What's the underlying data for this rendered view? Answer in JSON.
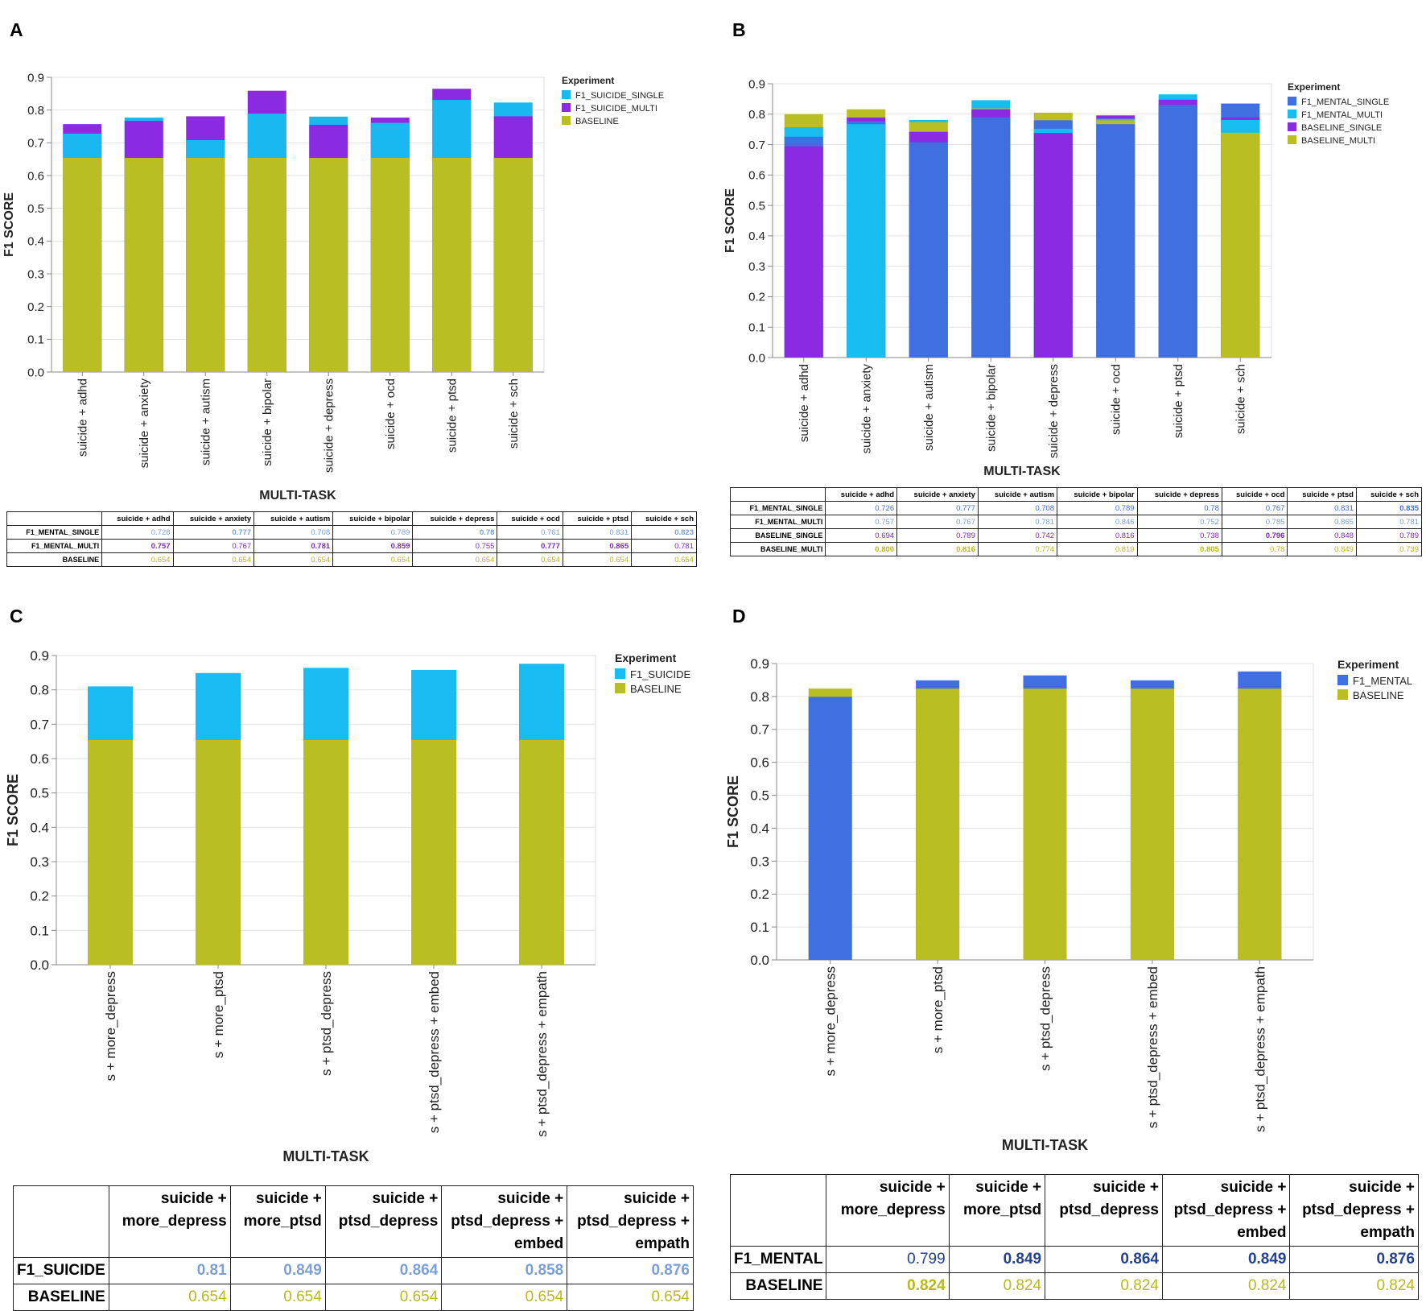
{
  "colors": {
    "f1_suicide_single": "#1ab8f0",
    "f1_suicide_multi": "#8a2be2",
    "baseline": "#b9be22",
    "f1_mental_single": "#3f6fe0",
    "f1_mental_multi": "#18bdf0",
    "baseline_single": "#8a2be2",
    "baseline_multi": "#b9be22",
    "f1_suicide": "#19bcf2",
    "f1_mental": "#3f6fe0",
    "tbl_light_blue": "#7c9fd6",
    "tbl_purple": "#7d2bc4",
    "tbl_olive": "#b9b81e",
    "tbl_dark_blue": "#24408e"
  },
  "chart_data": [
    {
      "panel": "A",
      "type": "bar",
      "stacked": "overlay",
      "ylabel": "F1 SCORE",
      "xlabel": "MULTI-TASK",
      "ylim": [
        0,
        0.9
      ],
      "yticks": [
        "0.0",
        "0.1",
        "0.2",
        "0.3",
        "0.4",
        "0.5",
        "0.6",
        "0.7",
        "0.8",
        "0.9"
      ],
      "legend_title": "Experiment",
      "legend_position": "top-right",
      "categories": [
        "suicide + adhd",
        "suicide + anxiety",
        "suicide + autism",
        "suicide + bipolar",
        "suicide + depress",
        "suicide + ocd",
        "suicide + ptsd",
        "suicide + sch"
      ],
      "series": [
        {
          "name": "F1_SUICIDE_SINGLE",
          "color_key": "f1_suicide_single",
          "values": [
            0.728,
            0.777,
            0.708,
            0.789,
            0.78,
            0.761,
            0.831,
            0.823
          ]
        },
        {
          "name": "F1_SUICIDE_MULTI",
          "color_key": "f1_suicide_multi",
          "values": [
            0.757,
            0.767,
            0.781,
            0.859,
            0.755,
            0.777,
            0.865,
            0.781
          ]
        },
        {
          "name": "BASELINE",
          "color_key": "baseline",
          "values": [
            0.654,
            0.654,
            0.654,
            0.654,
            0.654,
            0.654,
            0.654,
            0.654
          ]
        }
      ]
    },
    {
      "panel": "B",
      "type": "bar",
      "stacked": "overlay",
      "ylabel": "F1 SCORE",
      "xlabel": "MULTI-TASK",
      "ylim": [
        0,
        0.9
      ],
      "yticks": [
        "0.0",
        "0.1",
        "0.2",
        "0.3",
        "0.4",
        "0.5",
        "0.6",
        "0.7",
        "0.8",
        "0.9"
      ],
      "legend_title": "Experiment",
      "legend_position": "top-right",
      "categories": [
        "suicide + adhd",
        "suicide + anxiety",
        "suicide + autism",
        "suicide + bipolar",
        "suicide + depress",
        "suicide + ocd",
        "suicide + ptsd",
        "suicide + sch"
      ],
      "series": [
        {
          "name": "F1_MENTAL_SINGLE",
          "color_key": "f1_mental_single",
          "values": [
            0.726,
            0.777,
            0.708,
            0.789,
            0.78,
            0.767,
            0.831,
            0.835
          ]
        },
        {
          "name": "F1_MENTAL_MULTI",
          "color_key": "f1_mental_multi",
          "values": [
            0.757,
            0.767,
            0.781,
            0.846,
            0.752,
            0.785,
            0.865,
            0.781
          ]
        },
        {
          "name": "BASELINE_SINGLE",
          "color_key": "baseline_single",
          "values": [
            0.694,
            0.789,
            0.742,
            0.816,
            0.738,
            0.796,
            0.848,
            0.789
          ]
        },
        {
          "name": "BASELINE_MULTI",
          "color_key": "baseline_multi",
          "values": [
            0.8,
            0.816,
            0.774,
            0.819,
            0.805,
            0.78,
            0.849,
            0.739
          ]
        }
      ]
    },
    {
      "panel": "C",
      "type": "bar",
      "stacked": "overlay",
      "ylabel": "F1 SCORE",
      "xlabel": "MULTI-TASK",
      "ylim": [
        0,
        0.9
      ],
      "yticks": [
        "0.0",
        "0.1",
        "0.2",
        "0.3",
        "0.4",
        "0.5",
        "0.6",
        "0.7",
        "0.8",
        "0.9"
      ],
      "legend_title": "Experiment",
      "legend_position": "top-right",
      "categories": [
        "s + more_depress",
        "s + more_ptsd",
        "s + ptsd_depress",
        "s + ptsd_depress + embed",
        "s + ptsd_depress + empath"
      ],
      "series": [
        {
          "name": "F1_SUICIDE",
          "color_key": "f1_suicide",
          "values": [
            0.81,
            0.849,
            0.864,
            0.858,
            0.876
          ]
        },
        {
          "name": "BASELINE",
          "color_key": "baseline",
          "values": [
            0.654,
            0.654,
            0.654,
            0.654,
            0.654
          ]
        }
      ]
    },
    {
      "panel": "D",
      "type": "bar",
      "stacked": "overlay",
      "ylabel": "F1 SCORE",
      "xlabel": "MULTI-TASK",
      "ylim": [
        0,
        0.9
      ],
      "yticks": [
        "0.0",
        "0.1",
        "0.2",
        "0.3",
        "0.4",
        "0.5",
        "0.6",
        "0.7",
        "0.8",
        "0.9"
      ],
      "legend_title": "Experiment",
      "legend_position": "top-right",
      "categories": [
        "s + more_depress",
        "s + more_ptsd",
        "s + ptsd_depress",
        "s + ptsd_depress + embed",
        "s + ptsd_depress + empath"
      ],
      "series": [
        {
          "name": "F1_MENTAL",
          "color_key": "f1_mental",
          "values": [
            0.799,
            0.849,
            0.864,
            0.849,
            0.876
          ]
        },
        {
          "name": "BASELINE",
          "color_key": "baseline",
          "values": [
            0.824,
            0.824,
            0.824,
            0.824,
            0.824
          ]
        }
      ]
    }
  ],
  "panels": {
    "A": {
      "letter": "A",
      "table": {
        "headers": [
          "suicide + adhd",
          "suicide + anxiety",
          "suicide + autism",
          "suicide + bipolar",
          "suicide + depress",
          "suicide + ocd",
          "suicide + ptsd",
          "suicide + sch"
        ],
        "rows": [
          {
            "label": "F1_MENTAL_SINGLE",
            "color_key": "tbl_light_blue",
            "values": [
              "0.728",
              "0.777",
              "0.708",
              "0.789",
              "0.78",
              "0.761",
              "0.831",
              "0.823"
            ],
            "bold": [
              false,
              true,
              false,
              false,
              true,
              false,
              false,
              true
            ]
          },
          {
            "label": "F1_MENTAL_MULTI",
            "color_key": "tbl_purple",
            "values": [
              "0.757",
              "0.767",
              "0.781",
              "0.859",
              "0.755",
              "0.777",
              "0.865",
              "0.781"
            ],
            "bold": [
              true,
              false,
              true,
              true,
              false,
              true,
              true,
              false
            ]
          },
          {
            "label": "BASELINE",
            "color_key": "tbl_olive",
            "values": [
              "0.654",
              "0.654",
              "0.654",
              "0.654",
              "0.654",
              "0.654",
              "0.654",
              "0.654"
            ],
            "bold": [
              false,
              false,
              false,
              false,
              false,
              false,
              false,
              false
            ]
          }
        ]
      }
    },
    "B": {
      "letter": "B",
      "table": {
        "headers": [
          "suicide + adhd",
          "suicide + anxiety",
          "suicide + autism",
          "suicide + bipolar",
          "suicide + depress",
          "suicide + ocd",
          "suicide + ptsd",
          "suicide + sch"
        ],
        "rows": [
          {
            "label": "F1_MENTAL_SINGLE",
            "color_key": "f1_mental_single",
            "values": [
              "0.726",
              "0.777",
              "0.708",
              "0.789",
              "0.78",
              "0.767",
              "0.831",
              "0.835"
            ],
            "bold": [
              false,
              false,
              false,
              false,
              false,
              false,
              false,
              true
            ]
          },
          {
            "label": "F1_MENTAL_MULTI",
            "color_key": "tbl_light_blue",
            "values": [
              "0.757",
              "0.767",
              "0.781",
              "0.846",
              "0.752",
              "0.785",
              "0.865",
              "0.781"
            ],
            "bold": [
              false,
              false,
              false,
              false,
              false,
              false,
              false,
              false
            ]
          },
          {
            "label": "BASELINE_SINGLE",
            "color_key": "tbl_purple",
            "values": [
              "0.694",
              "0.789",
              "0.742",
              "0.816",
              "0.738",
              "0.796",
              "0.848",
              "0.789"
            ],
            "bold": [
              false,
              false,
              false,
              false,
              false,
              true,
              false,
              false
            ]
          },
          {
            "label": "BASELINE_MULTI",
            "color_key": "tbl_olive",
            "values": [
              "0.800",
              "0.816",
              "0.774",
              "0.819",
              "0.805",
              "0.78",
              "0.849",
              "0.739"
            ],
            "bold": [
              true,
              true,
              false,
              false,
              true,
              false,
              false,
              false
            ]
          }
        ]
      }
    },
    "C": {
      "letter": "C",
      "table": {
        "headers": [
          "suicide + more_depress",
          "suicide + more_ptsd",
          "suicide + ptsd_depress",
          "suicide + ptsd_depress + embed",
          "suicide + ptsd_depress + empath"
        ],
        "rows": [
          {
            "label": "F1_SUICIDE",
            "color_key": "tbl_light_blue",
            "values": [
              "0.81",
              "0.849",
              "0.864",
              "0.858",
              "0.876"
            ],
            "bold": [
              true,
              true,
              true,
              true,
              true
            ]
          },
          {
            "label": "BASELINE",
            "color_key": "tbl_olive",
            "values": [
              "0.654",
              "0.654",
              "0.654",
              "0.654",
              "0.654"
            ],
            "bold": [
              false,
              false,
              false,
              false,
              false
            ]
          }
        ]
      }
    },
    "D": {
      "letter": "D",
      "table": {
        "headers": [
          "suicide + more_depress",
          "suicide + more_ptsd",
          "suicide + ptsd_depress",
          "suicide + ptsd_depress + embed",
          "suicide + ptsd_depress + empath"
        ],
        "rows": [
          {
            "label": "F1_MENTAL",
            "color_key": "tbl_dark_blue",
            "values": [
              "0.799",
              "0.849",
              "0.864",
              "0.849",
              "0.876"
            ],
            "bold": [
              false,
              true,
              true,
              true,
              true
            ]
          },
          {
            "label": "BASELINE",
            "color_key": "tbl_olive",
            "values": [
              "0.824",
              "0.824",
              "0.824",
              "0.824",
              "0.824"
            ],
            "bold": [
              true,
              false,
              false,
              false,
              false
            ]
          }
        ]
      }
    }
  }
}
